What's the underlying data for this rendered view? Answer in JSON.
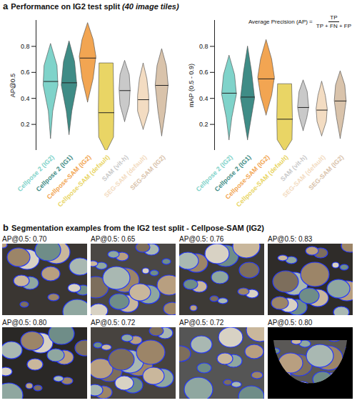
{
  "chart_data": [
    {
      "type": "violin",
      "ylabel": "AP@0.5",
      "categories": [
        "Cellpose 2 (IG2)",
        "Cellpose 2 (IG1)",
        "Cellpose-SAM (IG2)",
        "Cellpose-SAM (default)",
        "SAM (vit-h)",
        "SEG-SAM (default)",
        "SEG-SAM (IG2)"
      ],
      "colors": [
        "#7fd3ca",
        "#3f8c86",
        "#f2a552",
        "#e9d565",
        "#c9c9c9",
        "#f3dcc2",
        "#d9c3ab"
      ],
      "medians": [
        0.53,
        0.52,
        0.71,
        0.29,
        0.46,
        0.39,
        0.5
      ],
      "profiles": [
        [
          [
            0.09,
            0
          ],
          [
            0.3,
            0.12
          ],
          [
            0.5,
            0.4
          ],
          [
            0.65,
            0.35
          ],
          [
            0.82,
            0
          ]
        ],
        [
          [
            0.12,
            0
          ],
          [
            0.3,
            0.15
          ],
          [
            0.5,
            0.42
          ],
          [
            0.68,
            0.3
          ],
          [
            0.84,
            0
          ]
        ],
        [
          [
            0.37,
            0
          ],
          [
            0.55,
            0.3
          ],
          [
            0.72,
            0.45
          ],
          [
            0.85,
            0.3
          ],
          [
            0.98,
            0
          ]
        ],
        [
          [
            0.0,
            0.05
          ],
          [
            0.1,
            0.4
          ],
          [
            0.3,
            0.42
          ],
          [
            0.5,
            0.4
          ],
          [
            0.67,
            0.38
          ]
        ],
        [
          [
            0.22,
            0
          ],
          [
            0.35,
            0.25
          ],
          [
            0.47,
            0.3
          ],
          [
            0.58,
            0.25
          ],
          [
            0.69,
            0
          ]
        ],
        [
          [
            0.16,
            0
          ],
          [
            0.3,
            0.3
          ],
          [
            0.42,
            0.3
          ],
          [
            0.55,
            0.2
          ],
          [
            0.67,
            0
          ]
        ],
        [
          [
            0.11,
            0
          ],
          [
            0.3,
            0.2
          ],
          [
            0.5,
            0.35
          ],
          [
            0.65,
            0.25
          ],
          [
            0.78,
            0
          ]
        ]
      ],
      "ylim": [
        0,
        1
      ],
      "yticks": [
        0.2,
        0.4,
        0.6,
        0.8
      ],
      "grid": false
    },
    {
      "type": "violin",
      "ylabel": "mAP (0.5 - 0.9)",
      "annotation": {
        "text": "Average Precision (AP) =",
        "numerator": "TP",
        "denominator": "TP + FN + FP"
      },
      "categories": [
        "Cellpose 2 (IG2)",
        "Cellpose 2 (IG1)",
        "Cellpose-SAM (IG2)",
        "Cellpose-SAM (default)",
        "SAM (vit-h)",
        "SEG-SAM (default)",
        "SEG-SAM (IG2)"
      ],
      "colors": [
        "#7fd3ca",
        "#3f8c86",
        "#f2a552",
        "#e9d565",
        "#c9c9c9",
        "#f3dcc2",
        "#d9c3ab"
      ],
      "medians": [
        0.44,
        0.41,
        0.55,
        0.24,
        0.33,
        0.31,
        0.38
      ],
      "profiles": [
        [
          [
            0.08,
            0
          ],
          [
            0.25,
            0.15
          ],
          [
            0.43,
            0.4
          ],
          [
            0.58,
            0.3
          ],
          [
            0.73,
            0
          ]
        ],
        [
          [
            0.08,
            0
          ],
          [
            0.25,
            0.2
          ],
          [
            0.4,
            0.38
          ],
          [
            0.6,
            0.22
          ],
          [
            0.8,
            0
          ]
        ],
        [
          [
            0.27,
            0
          ],
          [
            0.42,
            0.3
          ],
          [
            0.56,
            0.45
          ],
          [
            0.7,
            0.3
          ],
          [
            0.85,
            0
          ]
        ],
        [
          [
            0.0,
            0.05
          ],
          [
            0.08,
            0.4
          ],
          [
            0.25,
            0.42
          ],
          [
            0.4,
            0.4
          ],
          [
            0.51,
            0.38
          ]
        ],
        [
          [
            0.15,
            0
          ],
          [
            0.25,
            0.2
          ],
          [
            0.33,
            0.3
          ],
          [
            0.45,
            0.22
          ],
          [
            0.54,
            0
          ]
        ],
        [
          [
            0.11,
            0
          ],
          [
            0.22,
            0.25
          ],
          [
            0.32,
            0.3
          ],
          [
            0.42,
            0.2
          ],
          [
            0.53,
            0
          ]
        ],
        [
          [
            0.09,
            0
          ],
          [
            0.25,
            0.2
          ],
          [
            0.38,
            0.32
          ],
          [
            0.5,
            0.25
          ],
          [
            0.61,
            0
          ]
        ]
      ],
      "ylim": [
        0,
        1
      ],
      "yticks": [
        0.2,
        0.4,
        0.6,
        0.8
      ],
      "grid": false
    }
  ],
  "figure": {
    "panels": [
      {
        "letter": "a",
        "title": "Performance on IG2 test split",
        "subtitle": "(40 image tiles)"
      },
      {
        "letter": "b",
        "title": "Segmentation examples from the IG2 test split - Cellpose-SAM (IG2)",
        "images": [
          {
            "label": "AP@0.5: 0.70"
          },
          {
            "label": "AP@0.5: 0.65"
          },
          {
            "label": "AP@0.5: 0.76"
          },
          {
            "label": "AP@0.5: 0.83"
          },
          {
            "label": "AP@0.5: 0.80"
          },
          {
            "label": "AP@0.5: 0.72"
          },
          {
            "label": "AP@0.5: 0.72"
          },
          {
            "label": "AP@0.5: 0.80"
          }
        ]
      }
    ]
  }
}
